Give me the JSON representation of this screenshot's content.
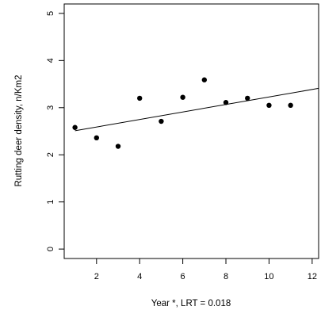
{
  "chart_data": {
    "type": "scatter",
    "xlabel": "Year *, LRT = 0.018",
    "ylabel": "Rutting deer density, n/Km2",
    "xlim": [
      0.5,
      12.3
    ],
    "ylim": [
      -0.2,
      5.2
    ],
    "x_ticks": [
      2,
      4,
      6,
      8,
      10,
      12
    ],
    "y_ticks": [
      0,
      1,
      2,
      3,
      4,
      5
    ],
    "grid": false,
    "legend": "none",
    "points": [
      {
        "x": 1,
        "y": 2.58
      },
      {
        "x": 2,
        "y": 2.36
      },
      {
        "x": 3,
        "y": 2.18
      },
      {
        "x": 4,
        "y": 3.2
      },
      {
        "x": 5,
        "y": 2.71
      },
      {
        "x": 6,
        "y": 3.22
      },
      {
        "x": 7,
        "y": 3.59
      },
      {
        "x": 8,
        "y": 3.11
      },
      {
        "x": 9,
        "y": 3.2
      },
      {
        "x": 10,
        "y": 3.05
      },
      {
        "x": 11,
        "y": 3.05
      }
    ],
    "trend_line": [
      {
        "x": 1,
        "y": 2.51
      },
      {
        "x": 12.3,
        "y": 3.41
      }
    ]
  }
}
